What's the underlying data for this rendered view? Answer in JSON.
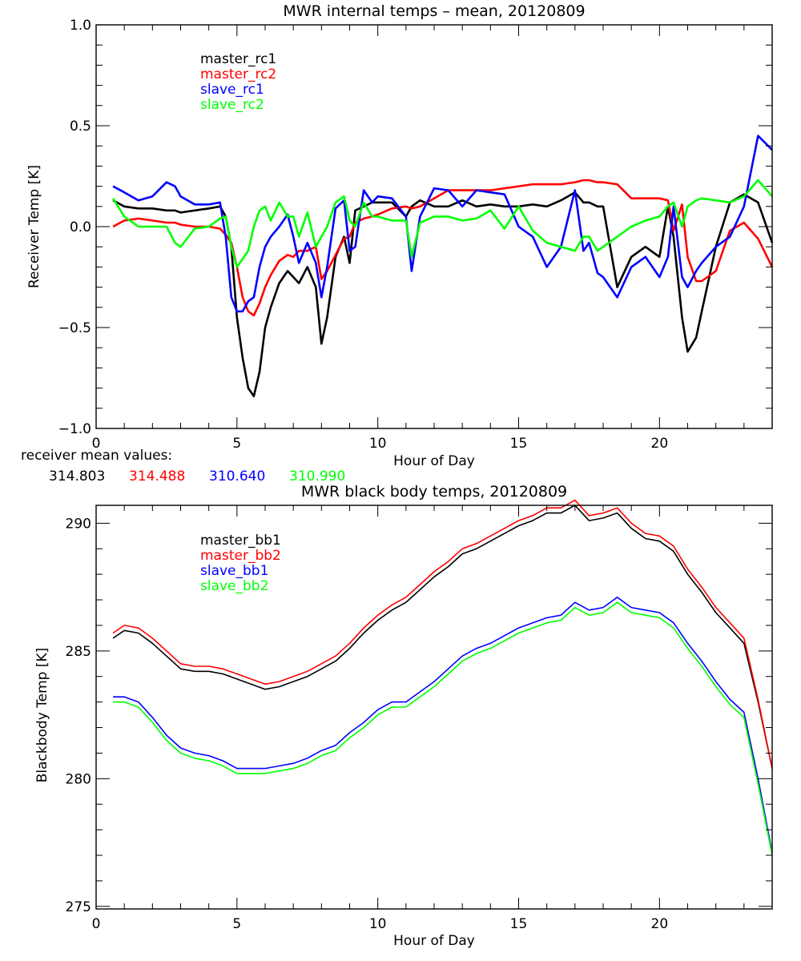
{
  "chart_data": [
    {
      "type": "line",
      "title": "MWR internal temps – mean, 20120809",
      "xlabel": "Hour of Day",
      "ylabel": "Receiver Temp [K]",
      "xlim": [
        0,
        24
      ],
      "ylim": [
        -1.0,
        1.0
      ],
      "xticks": [
        0,
        5,
        10,
        15,
        20
      ],
      "xtick_labels": [
        "0",
        "5",
        "10",
        "15",
        "20"
      ],
      "yticks": [
        1.0,
        0.5,
        0.0,
        -0.5,
        -1.0
      ],
      "ytick_labels": [
        "1.0",
        "0.5",
        "0.0",
        "−0.5",
        "−1.0"
      ],
      "grid": false,
      "legend_position": "top-left",
      "x": [
        0.6,
        1.0,
        1.5,
        2.0,
        2.5,
        2.8,
        3.0,
        3.5,
        4.0,
        4.4,
        4.6,
        4.8,
        5.0,
        5.2,
        5.4,
        5.6,
        5.8,
        6.0,
        6.2,
        6.5,
        6.8,
        7.0,
        7.2,
        7.5,
        7.8,
        8.0,
        8.2,
        8.5,
        8.8,
        9.0,
        9.2,
        9.5,
        9.8,
        10.0,
        10.5,
        11.0,
        11.2,
        11.5,
        12.0,
        12.5,
        13.0,
        13.5,
        14.0,
        14.5,
        15.0,
        15.5,
        16.0,
        16.5,
        17.0,
        17.3,
        17.5,
        17.8,
        18.0,
        18.5,
        19.0,
        19.5,
        20.0,
        20.3,
        20.5,
        20.8,
        21.0,
        21.3,
        21.5,
        22.0,
        22.5,
        23.0,
        23.5,
        24.0
      ],
      "series": [
        {
          "name": "master_rc1",
          "color": "#000000",
          "values": [
            0.13,
            0.1,
            0.09,
            0.09,
            0.08,
            0.08,
            0.07,
            0.08,
            0.09,
            0.1,
            0.05,
            -0.1,
            -0.45,
            -0.65,
            -0.8,
            -0.84,
            -0.72,
            -0.5,
            -0.4,
            -0.28,
            -0.22,
            -0.25,
            -0.28,
            -0.2,
            -0.3,
            -0.58,
            -0.45,
            -0.15,
            -0.05,
            -0.18,
            0.08,
            0.1,
            0.12,
            0.12,
            0.12,
            0.05,
            0.1,
            0.13,
            0.1,
            0.1,
            0.13,
            0.1,
            0.11,
            0.1,
            0.1,
            0.11,
            0.1,
            0.13,
            0.17,
            0.12,
            0.12,
            0.1,
            0.1,
            -0.3,
            -0.15,
            -0.1,
            -0.15,
            0.1,
            -0.05,
            -0.45,
            -0.62,
            -0.55,
            -0.42,
            -0.1,
            0.12,
            0.16,
            0.12,
            -0.08
          ]
        },
        {
          "name": "master_rc2",
          "color": "#ff0000",
          "values": [
            0.0,
            0.03,
            0.04,
            0.03,
            0.02,
            0.02,
            0.01,
            0.0,
            0.0,
            -0.01,
            -0.04,
            -0.08,
            -0.2,
            -0.35,
            -0.42,
            -0.44,
            -0.38,
            -0.3,
            -0.24,
            -0.17,
            -0.14,
            -0.15,
            -0.12,
            -0.12,
            -0.1,
            -0.26,
            -0.22,
            -0.14,
            -0.06,
            -0.05,
            0.02,
            0.04,
            0.05,
            0.06,
            0.09,
            0.1,
            0.09,
            0.1,
            0.14,
            0.18,
            0.18,
            0.18,
            0.18,
            0.19,
            0.2,
            0.21,
            0.21,
            0.21,
            0.22,
            0.23,
            0.23,
            0.22,
            0.22,
            0.21,
            0.14,
            0.14,
            0.14,
            0.13,
            -0.02,
            0.11,
            -0.15,
            -0.27,
            -0.27,
            -0.22,
            -0.02,
            0.02,
            -0.06,
            -0.2
          ]
        },
        {
          "name": "slave_rc1",
          "color": "#0000ff",
          "values": [
            0.2,
            0.17,
            0.13,
            0.15,
            0.22,
            0.2,
            0.15,
            0.11,
            0.11,
            0.12,
            -0.05,
            -0.35,
            -0.42,
            -0.42,
            -0.37,
            -0.35,
            -0.2,
            -0.1,
            -0.05,
            0.0,
            0.06,
            -0.05,
            -0.18,
            -0.08,
            -0.18,
            -0.35,
            -0.2,
            0.09,
            0.13,
            -0.12,
            -0.1,
            0.18,
            0.12,
            0.15,
            0.14,
            0.05,
            -0.22,
            0.05,
            0.19,
            0.18,
            0.1,
            0.18,
            0.17,
            0.16,
            0.0,
            -0.05,
            -0.2,
            -0.1,
            0.18,
            -0.12,
            -0.08,
            -0.23,
            -0.25,
            -0.35,
            -0.2,
            -0.15,
            -0.25,
            -0.15,
            0.1,
            -0.25,
            -0.3,
            -0.22,
            -0.18,
            -0.1,
            -0.05,
            0.1,
            0.45,
            0.38
          ]
        },
        {
          "name": "slave_rc2",
          "color": "#00ff00",
          "values": [
            0.14,
            0.05,
            0.0,
            0.0,
            0.0,
            -0.08,
            -0.1,
            -0.01,
            0.0,
            0.04,
            0.05,
            -0.1,
            -0.2,
            -0.16,
            -0.12,
            0.0,
            0.08,
            0.1,
            0.03,
            0.12,
            0.05,
            0.05,
            -0.05,
            0.07,
            -0.1,
            -0.05,
            0.0,
            0.12,
            0.15,
            0.03,
            0.0,
            0.12,
            0.05,
            0.05,
            0.03,
            0.03,
            -0.15,
            0.02,
            0.05,
            0.05,
            0.03,
            0.04,
            0.08,
            -0.01,
            0.1,
            -0.02,
            -0.08,
            -0.1,
            -0.12,
            -0.05,
            -0.05,
            -0.12,
            -0.1,
            -0.05,
            0.0,
            0.03,
            0.05,
            0.1,
            0.12,
            0.0,
            0.1,
            0.13,
            0.14,
            0.13,
            0.12,
            0.15,
            0.23,
            0.15
          ]
        }
      ],
      "annotation": {
        "label": "receiver mean values:",
        "values": [
          {
            "text": "314.803",
            "color": "#000000"
          },
          {
            "text": "314.488",
            "color": "#ff0000"
          },
          {
            "text": "310.640",
            "color": "#0000ff"
          },
          {
            "text": "310.990",
            "color": "#00ff00"
          }
        ]
      }
    },
    {
      "type": "line",
      "title": "MWR black body temps, 20120809",
      "xlabel": "Hour of Day",
      "ylabel": "Blackbody Temp [K]",
      "xlim": [
        0,
        24
      ],
      "ylim": [
        274.9,
        290.7
      ],
      "xticks": [
        0,
        5,
        10,
        15,
        20
      ],
      "xtick_labels": [
        "0",
        "5",
        "10",
        "15",
        "20"
      ],
      "yticks": [
        290,
        285,
        280,
        275
      ],
      "ytick_labels": [
        "290",
        "285",
        "280",
        "275"
      ],
      "grid": false,
      "legend_position": "top-left",
      "x": [
        0.6,
        1.0,
        1.5,
        2.0,
        2.5,
        3.0,
        3.5,
        4.0,
        4.5,
        5.0,
        5.5,
        6.0,
        6.5,
        7.0,
        7.5,
        8.0,
        8.5,
        9.0,
        9.5,
        10.0,
        10.5,
        11.0,
        11.5,
        12.0,
        12.5,
        13.0,
        13.5,
        14.0,
        14.5,
        15.0,
        15.5,
        16.0,
        16.5,
        17.0,
        17.5,
        18.0,
        18.5,
        19.0,
        19.5,
        20.0,
        20.5,
        21.0,
        21.5,
        22.0,
        22.5,
        23.0,
        23.5,
        24.0
      ],
      "series": [
        {
          "name": "master_bb1",
          "color": "#000000",
          "values": [
            285.5,
            285.8,
            285.7,
            285.3,
            284.8,
            284.3,
            284.2,
            284.2,
            284.1,
            283.9,
            283.7,
            283.5,
            283.6,
            283.8,
            284.0,
            284.3,
            284.6,
            285.1,
            285.7,
            286.2,
            286.6,
            286.9,
            287.4,
            287.9,
            288.3,
            288.8,
            289.0,
            289.3,
            289.6,
            289.9,
            290.1,
            290.4,
            290.4,
            290.7,
            290.1,
            290.2,
            290.4,
            289.8,
            289.4,
            289.3,
            288.9,
            288.0,
            287.3,
            286.5,
            285.9,
            285.3,
            283.0,
            280.4
          ]
        },
        {
          "name": "master_bb2",
          "color": "#ff0000",
          "values": [
            285.7,
            286.0,
            285.9,
            285.5,
            285.0,
            284.5,
            284.4,
            284.4,
            284.3,
            284.1,
            283.9,
            283.7,
            283.8,
            284.0,
            284.2,
            284.5,
            284.8,
            285.3,
            285.9,
            286.4,
            286.8,
            287.1,
            287.6,
            288.1,
            288.5,
            289.0,
            289.2,
            289.5,
            289.8,
            290.1,
            290.3,
            290.6,
            290.6,
            290.9,
            290.3,
            290.4,
            290.6,
            290.0,
            289.6,
            289.5,
            289.1,
            288.2,
            287.5,
            286.7,
            286.1,
            285.5,
            283.1,
            280.4
          ]
        },
        {
          "name": "slave_bb1",
          "color": "#0000ff",
          "values": [
            283.2,
            283.2,
            283.0,
            282.4,
            281.7,
            281.2,
            281.0,
            280.9,
            280.7,
            280.4,
            280.4,
            280.4,
            280.5,
            280.6,
            280.8,
            281.1,
            281.3,
            281.8,
            282.2,
            282.7,
            283.0,
            283.0,
            283.4,
            283.8,
            284.3,
            284.8,
            285.1,
            285.3,
            285.6,
            285.9,
            286.1,
            286.3,
            286.4,
            286.9,
            286.6,
            286.7,
            287.1,
            286.7,
            286.6,
            286.5,
            286.1,
            285.3,
            284.6,
            283.8,
            283.1,
            282.6,
            280.0,
            277.1
          ]
        },
        {
          "name": "slave_bb2",
          "color": "#00ff00",
          "values": [
            283.0,
            283.0,
            282.8,
            282.2,
            281.5,
            281.0,
            280.8,
            280.7,
            280.5,
            280.2,
            280.2,
            280.2,
            280.3,
            280.4,
            280.6,
            280.9,
            281.1,
            281.6,
            282.0,
            282.5,
            282.8,
            282.8,
            283.2,
            283.6,
            284.1,
            284.6,
            284.9,
            285.1,
            285.4,
            285.7,
            285.9,
            286.1,
            286.2,
            286.7,
            286.4,
            286.5,
            286.9,
            286.5,
            286.4,
            286.3,
            285.9,
            285.1,
            284.4,
            283.6,
            282.9,
            282.4,
            279.8,
            277.0
          ]
        }
      ]
    }
  ]
}
